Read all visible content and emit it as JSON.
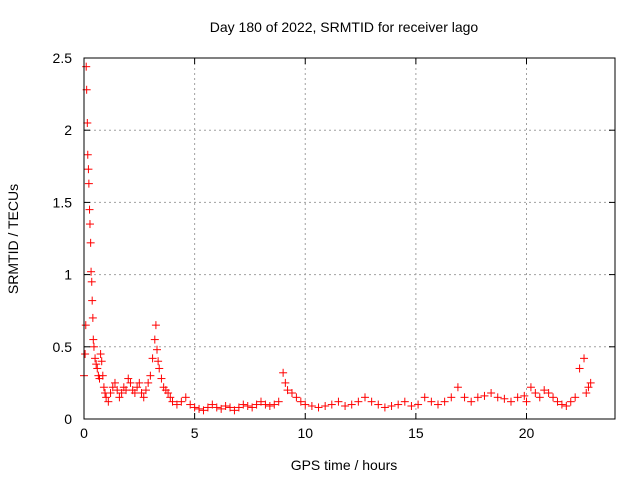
{
  "chart_data": {
    "type": "scatter",
    "title": "Day 180 of 2022, SRMTID for receiver lago",
    "xlabel": "GPS time / hours",
    "ylabel": "SRMTID / TECUs",
    "xlim": [
      0,
      24
    ],
    "ylim": [
      0,
      2.5
    ],
    "x_ticks": [
      0,
      5,
      10,
      15,
      20
    ],
    "y_ticks": [
      0,
      0.5,
      1,
      1.5,
      2,
      2.5
    ],
    "x_tick_labels": [
      "0",
      "5",
      "10",
      "15",
      "20"
    ],
    "y_tick_labels": [
      "0",
      "0.5",
      "1",
      "1.5",
      "2",
      "2.5"
    ],
    "grid": true,
    "marker": "+",
    "series": [
      {
        "name": "SRMTID",
        "color": "#ff0000",
        "x": [
          0.0,
          0.05,
          0.08,
          0.1,
          0.12,
          0.15,
          0.17,
          0.2,
          0.22,
          0.25,
          0.27,
          0.3,
          0.32,
          0.35,
          0.37,
          0.4,
          0.42,
          0.45,
          0.5,
          0.55,
          0.6,
          0.65,
          0.7,
          0.75,
          0.8,
          0.85,
          0.9,
          0.95,
          1.0,
          1.1,
          1.2,
          1.3,
          1.4,
          1.5,
          1.6,
          1.7,
          1.8,
          1.9,
          2.0,
          2.1,
          2.2,
          2.3,
          2.4,
          2.5,
          2.6,
          2.7,
          2.8,
          2.9,
          3.0,
          3.1,
          3.2,
          3.25,
          3.3,
          3.35,
          3.4,
          3.5,
          3.6,
          3.7,
          3.8,
          3.9,
          4.0,
          4.2,
          4.4,
          4.6,
          4.8,
          5.0,
          5.2,
          5.4,
          5.6,
          5.8,
          6.0,
          6.2,
          6.4,
          6.6,
          6.8,
          7.0,
          7.2,
          7.4,
          7.6,
          7.8,
          8.0,
          8.2,
          8.4,
          8.6,
          8.8,
          9.0,
          9.1,
          9.2,
          9.4,
          9.6,
          9.8,
          10.0,
          10.3,
          10.6,
          10.9,
          11.2,
          11.5,
          11.8,
          12.1,
          12.4,
          12.7,
          13.0,
          13.3,
          13.6,
          13.9,
          14.2,
          14.5,
          14.8,
          15.1,
          15.4,
          15.7,
          16.0,
          16.3,
          16.6,
          16.9,
          17.2,
          17.5,
          17.8,
          18.1,
          18.4,
          18.7,
          19.0,
          19.3,
          19.6,
          19.9,
          20.0,
          20.2,
          20.4,
          20.6,
          20.8,
          21.0,
          21.2,
          21.4,
          21.6,
          21.8,
          22.0,
          22.2,
          22.4,
          22.6,
          22.7,
          22.8,
          22.9
        ],
        "y": [
          0.3,
          0.45,
          0.65,
          2.44,
          2.28,
          2.05,
          1.83,
          1.73,
          1.63,
          1.45,
          1.35,
          1.22,
          1.02,
          0.95,
          0.82,
          0.7,
          0.55,
          0.5,
          0.42,
          0.38,
          0.35,
          0.3,
          0.28,
          0.45,
          0.4,
          0.3,
          0.22,
          0.18,
          0.15,
          0.12,
          0.18,
          0.22,
          0.25,
          0.2,
          0.15,
          0.18,
          0.22,
          0.2,
          0.28,
          0.25,
          0.2,
          0.18,
          0.22,
          0.25,
          0.18,
          0.15,
          0.2,
          0.25,
          0.3,
          0.42,
          0.55,
          0.65,
          0.48,
          0.4,
          0.35,
          0.28,
          0.22,
          0.2,
          0.18,
          0.15,
          0.12,
          0.1,
          0.12,
          0.15,
          0.1,
          0.08,
          0.07,
          0.06,
          0.08,
          0.1,
          0.08,
          0.07,
          0.09,
          0.08,
          0.06,
          0.08,
          0.1,
          0.09,
          0.08,
          0.1,
          0.12,
          0.1,
          0.09,
          0.1,
          0.12,
          0.32,
          0.25,
          0.2,
          0.18,
          0.15,
          0.12,
          0.1,
          0.09,
          0.08,
          0.09,
          0.1,
          0.12,
          0.09,
          0.1,
          0.12,
          0.15,
          0.12,
          0.1,
          0.08,
          0.09,
          0.1,
          0.12,
          0.09,
          0.1,
          0.15,
          0.12,
          0.1,
          0.12,
          0.15,
          0.22,
          0.15,
          0.12,
          0.15,
          0.16,
          0.18,
          0.15,
          0.14,
          0.12,
          0.15,
          0.16,
          0.12,
          0.22,
          0.18,
          0.15,
          0.2,
          0.18,
          0.15,
          0.12,
          0.1,
          0.09,
          0.12,
          0.15,
          0.35,
          0.42,
          0.18,
          0.22,
          0.25
        ]
      }
    ]
  }
}
